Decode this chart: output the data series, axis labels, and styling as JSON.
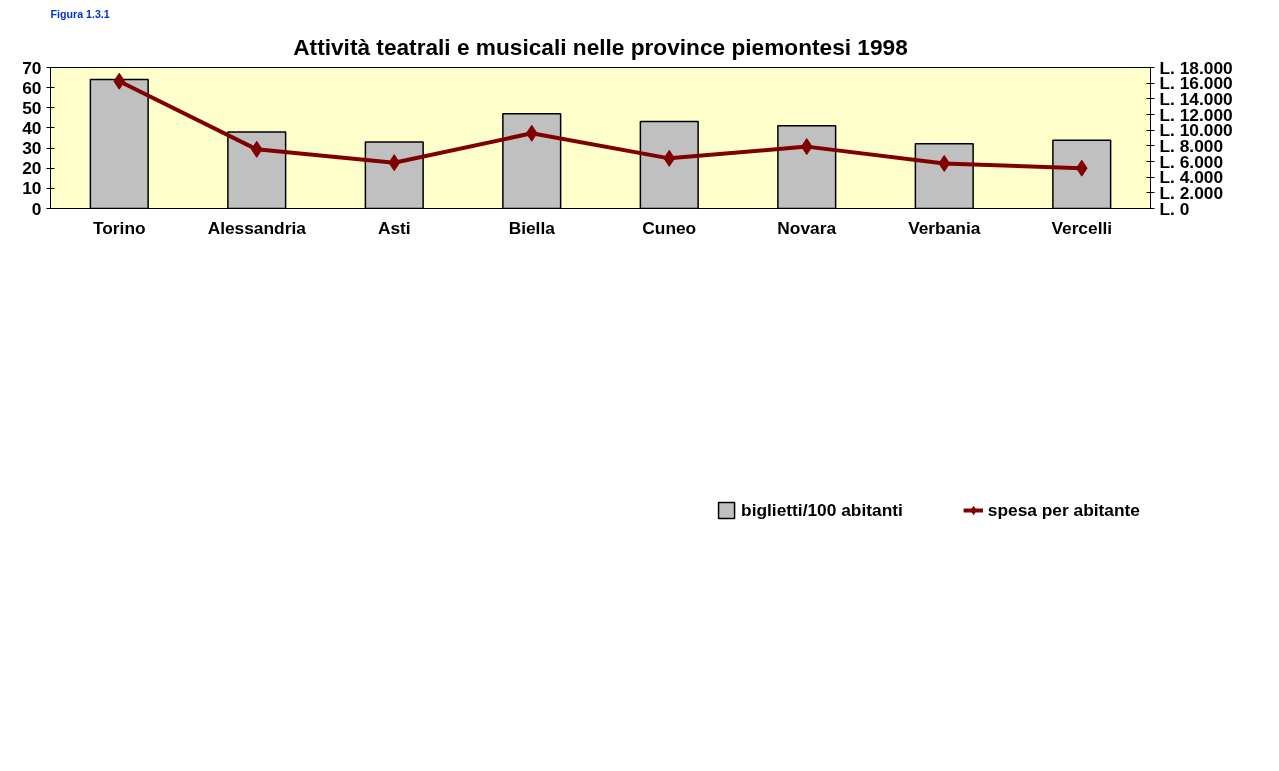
{
  "chart_data": {
    "type": "bar",
    "title": "Attività teatrali e musicali nelle province piemontesi 1998",
    "annotations": [
      "Figura 1.3.1"
    ],
    "categories": [
      "Torino",
      "Alessandria",
      "Asti",
      "Biella",
      "Cuneo",
      "Novara",
      "Verbania",
      "Vercelli"
    ],
    "series": [
      {
        "name": "biglietti/100 abitanti",
        "color": "#c0c0c0",
        "values": [
          64,
          38,
          33,
          47,
          43.2,
          41.1,
          32.2,
          33.9
        ]
      },
      {
        "name": "spesa per abitante",
        "type": "line",
        "axis": "y2",
        "color": "#800000",
        "marker": "diamond",
        "values": [
          16250,
          7550,
          5850,
          9600,
          6400,
          7900,
          5750,
          5150
        ]
      }
    ],
    "ylim": [
      0,
      70
    ],
    "yticks": [
      0,
      10,
      20,
      30,
      40,
      50,
      60,
      70
    ],
    "y2lim": [
      0,
      18000
    ],
    "y2ticks": [
      {
        "value": 0,
        "label": "L. 0"
      },
      {
        "value": 2000,
        "label": "L. 2.000"
      },
      {
        "value": 4000,
        "label": "L. 4.000"
      },
      {
        "value": 6000,
        "label": "L. 6.000"
      },
      {
        "value": 8000,
        "label": "L. 8.000"
      },
      {
        "value": 10000,
        "label": "L. 10.000"
      },
      {
        "value": 12000,
        "label": "L. 12.000"
      },
      {
        "value": 14000,
        "label": "L. 14.000"
      },
      {
        "value": 16000,
        "label": "L. 16.000"
      },
      {
        "value": 18000,
        "label": "L. 18.000"
      }
    ],
    "grid": false,
    "legend": "bottom"
  }
}
